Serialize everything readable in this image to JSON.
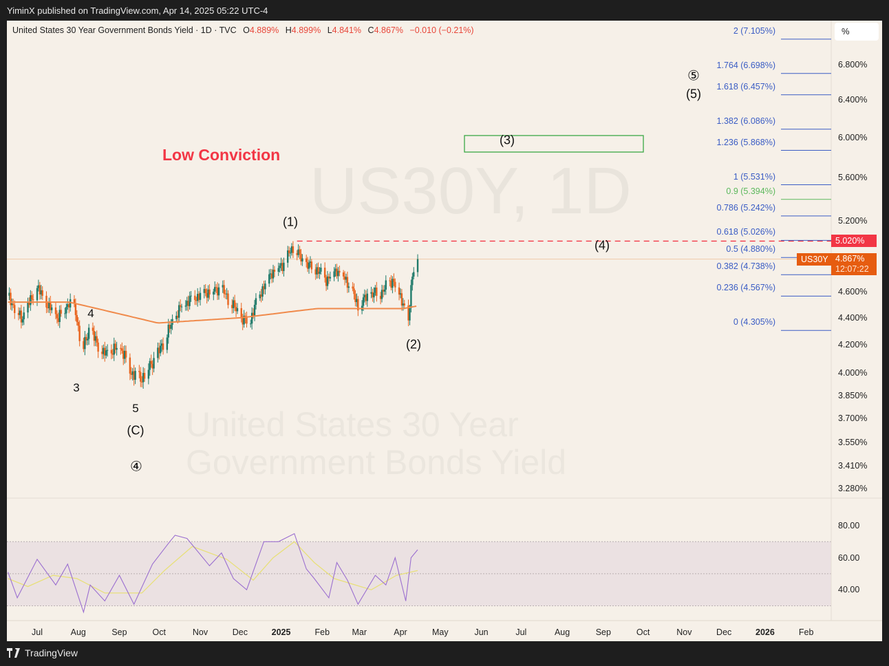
{
  "header": {
    "published": "YiminX published on TradingView.com, Apr 14, 2025 05:22 UTC-4"
  },
  "legend": {
    "symbol": "United States 30 Year Government Bonds Yield · 1D · TVC",
    "o_label": "O",
    "o": "4.889%",
    "h_label": "H",
    "h": "4.899%",
    "l_label": "L",
    "l": "4.841%",
    "c_label": "C",
    "c": "4.867%",
    "change": "−0.010 (−0.21%)"
  },
  "watermark": {
    "ticker": "US30Y, 1D",
    "name": "United States 30 Year Government Bonds Yield"
  },
  "annotations": {
    "low_conviction": "Low Conviction",
    "w1": "(1)",
    "w2": "(2)",
    "w3": "(3)",
    "w4": "(4)",
    "w5_circ": "⑤",
    "w5": "(5)",
    "m4": "4",
    "m3": "3",
    "m5": "5",
    "mc": "(C)",
    "c4": "④"
  },
  "price_axis": {
    "unit": "%",
    "ticks": [
      "6.800%",
      "6.400%",
      "6.000%",
      "5.600%",
      "5.200%",
      "4.600%",
      "4.400%",
      "4.200%",
      "4.000%",
      "3.850%",
      "3.700%",
      "3.550%",
      "3.410%",
      "3.280%"
    ],
    "tick_values": [
      6.8,
      6.4,
      6.0,
      5.6,
      5.2,
      4.6,
      4.4,
      4.2,
      4.0,
      3.85,
      3.7,
      3.55,
      3.41,
      3.28
    ],
    "scale": "log",
    "alert_label": "5.020%",
    "alert_value": 5.02,
    "symbol_badge": "US30Y",
    "last_price": "4.867%",
    "last_value": 4.867,
    "countdown": "12:07:22"
  },
  "fib_levels": [
    {
      "label": "2 (7.105%)",
      "value": 7.105,
      "color": "#3a5cc4"
    },
    {
      "label": "1.764 (6.698%)",
      "value": 6.698,
      "color": "#3a5cc4"
    },
    {
      "label": "1.618 (6.457%)",
      "value": 6.457,
      "color": "#3a5cc4"
    },
    {
      "label": "1.382 (6.086%)",
      "value": 6.086,
      "color": "#3a5cc4"
    },
    {
      "label": "1.236 (5.868%)",
      "value": 5.868,
      "color": "#3a5cc4"
    },
    {
      "label": "1 (5.531%)",
      "value": 5.531,
      "color": "#3a5cc4"
    },
    {
      "label": "0.9 (5.394%)",
      "value": 5.394,
      "color": "#5cb85c"
    },
    {
      "label": "0.786 (5.242%)",
      "value": 5.242,
      "color": "#3a5cc4"
    },
    {
      "label": "0.618 (5.026%)",
      "value": 5.026,
      "color": "#3a5cc4"
    },
    {
      "label": "0.5 (4.880%)",
      "value": 4.88,
      "color": "#3a5cc4"
    },
    {
      "label": "0.382 (4.738%)",
      "value": 4.738,
      "color": "#3a5cc4"
    },
    {
      "label": "0.236 (4.567%)",
      "value": 4.567,
      "color": "#3a5cc4"
    },
    {
      "label": "0 (4.305%)",
      "value": 4.305,
      "color": "#3a5cc4"
    }
  ],
  "x_axis": [
    {
      "label": "Jul",
      "date": "2024-07-01"
    },
    {
      "label": "Aug",
      "date": "2024-08-01"
    },
    {
      "label": "Sep",
      "date": "2024-09-01"
    },
    {
      "label": "Oct",
      "date": "2024-10-01"
    },
    {
      "label": "Nov",
      "date": "2024-11-01"
    },
    {
      "label": "Dec",
      "date": "2024-12-01"
    },
    {
      "label": "2025",
      "date": "2025-01-01",
      "bold": true
    },
    {
      "label": "Feb",
      "date": "2025-02-01"
    },
    {
      "label": "Mar",
      "date": "2025-03-01"
    },
    {
      "label": "Apr",
      "date": "2025-04-01"
    },
    {
      "label": "May",
      "date": "2025-05-01"
    },
    {
      "label": "Jun",
      "date": "2025-06-01"
    },
    {
      "label": "Jul",
      "date": "2025-07-01"
    },
    {
      "label": "Aug",
      "date": "2025-08-01"
    },
    {
      "label": "Sep",
      "date": "2025-09-01"
    },
    {
      "label": "Oct",
      "date": "2025-10-01"
    },
    {
      "label": "Nov",
      "date": "2025-11-01"
    },
    {
      "label": "Dec",
      "date": "2025-12-01"
    },
    {
      "label": "2026",
      "date": "2026-01-01",
      "bold": true
    },
    {
      "label": "Feb",
      "date": "2026-02-01"
    }
  ],
  "chart_data": {
    "type": "candlestick",
    "colors": {
      "up": "#1f7a6a",
      "down": "#e8641e",
      "ma": "#f08a4b",
      "rsi": "#9b6fd0",
      "rsi_ma": "#e8e07a",
      "alert": "#f23645",
      "last": "#e65c10"
    },
    "close_path": [
      [
        "2024-06-09",
        4.57
      ],
      [
        "2024-06-19",
        4.39
      ],
      [
        "2024-07-01",
        4.63
      ],
      [
        "2024-07-09",
        4.49
      ],
      [
        "2024-07-17",
        4.4
      ],
      [
        "2024-07-25",
        4.52
      ],
      [
        "2024-07-30",
        4.45
      ],
      [
        "2024-08-04",
        4.15
      ],
      [
        "2024-08-09",
        4.31
      ],
      [
        "2024-08-20",
        4.13
      ],
      [
        "2024-09-02",
        4.18
      ],
      [
        "2024-09-10",
        4.01
      ],
      [
        "2024-09-17",
        3.96
      ],
      [
        "2024-09-30",
        4.13
      ],
      [
        "2024-10-11",
        4.36
      ],
      [
        "2024-10-18",
        4.49
      ],
      [
        "2024-10-26",
        4.55
      ],
      [
        "2024-11-06",
        4.6
      ],
      [
        "2024-11-16",
        4.63
      ],
      [
        "2024-11-24",
        4.52
      ],
      [
        "2024-12-02",
        4.39
      ],
      [
        "2024-12-08",
        4.36
      ],
      [
        "2024-12-15",
        4.57
      ],
      [
        "2024-12-25",
        4.76
      ],
      [
        "2025-01-02",
        4.82
      ],
      [
        "2025-01-11",
        4.98
      ],
      [
        "2025-01-17",
        4.84
      ],
      [
        "2025-01-28",
        4.78
      ],
      [
        "2025-02-04",
        4.7
      ],
      [
        "2025-02-12",
        4.78
      ],
      [
        "2025-02-20",
        4.68
      ],
      [
        "2025-02-28",
        4.49
      ],
      [
        "2025-03-08",
        4.57
      ],
      [
        "2025-03-18",
        4.6
      ],
      [
        "2025-03-26",
        4.7
      ],
      [
        "2025-04-03",
        4.52
      ],
      [
        "2025-04-07",
        4.36
      ],
      [
        "2025-04-10",
        4.76
      ],
      [
        "2025-04-14",
        4.867
      ]
    ],
    "moving_average": [
      [
        "2024-06-09",
        4.52
      ],
      [
        "2024-07-25",
        4.52
      ],
      [
        "2024-09-30",
        4.36
      ],
      [
        "2024-12-02",
        4.4
      ],
      [
        "2025-01-28",
        4.47
      ],
      [
        "2025-04-03",
        4.47
      ],
      [
        "2025-04-14",
        4.49
      ]
    ],
    "rsi": {
      "ticks": [
        "80.00",
        "60.00",
        "40.00"
      ],
      "tick_values": [
        80,
        60,
        40
      ],
      "bands": [
        70,
        50,
        30
      ],
      "values": [
        [
          "2024-06-09",
          51
        ],
        [
          "2024-06-16",
          35
        ],
        [
          "2024-07-01",
          59
        ],
        [
          "2024-07-15",
          43
        ],
        [
          "2024-07-24",
          56
        ],
        [
          "2024-08-05",
          26
        ],
        [
          "2024-08-10",
          43
        ],
        [
          "2024-08-21",
          33
        ],
        [
          "2024-09-01",
          49
        ],
        [
          "2024-09-12",
          31
        ],
        [
          "2024-09-26",
          56
        ],
        [
          "2024-10-09",
          70
        ],
        [
          "2024-10-13",
          74
        ],
        [
          "2024-10-22",
          72
        ],
        [
          "2024-11-08",
          55
        ],
        [
          "2024-11-17",
          63
        ],
        [
          "2024-11-26",
          47
        ],
        [
          "2024-12-06",
          40
        ],
        [
          "2024-12-19",
          70
        ],
        [
          "2024-12-30",
          70
        ],
        [
          "2025-01-11",
          75
        ],
        [
          "2025-01-20",
          53
        ],
        [
          "2025-01-26",
          47
        ],
        [
          "2025-02-06",
          35
        ],
        [
          "2025-02-12",
          57
        ],
        [
          "2025-02-20",
          46
        ],
        [
          "2025-02-28",
          31
        ],
        [
          "2025-03-13",
          49
        ],
        [
          "2025-03-21",
          43
        ],
        [
          "2025-03-28",
          60
        ],
        [
          "2025-04-05",
          33
        ],
        [
          "2025-04-09",
          60
        ],
        [
          "2025-04-14",
          65
        ]
      ],
      "ma": [
        [
          "2024-06-09",
          47
        ],
        [
          "2024-06-24",
          42
        ],
        [
          "2024-07-13",
          49
        ],
        [
          "2024-07-31",
          47
        ],
        [
          "2024-08-21",
          38
        ],
        [
          "2024-09-18",
          38
        ],
        [
          "2024-10-05",
          52
        ],
        [
          "2024-10-26",
          67
        ],
        [
          "2024-11-21",
          59
        ],
        [
          "2024-12-11",
          46
        ],
        [
          "2024-12-26",
          60
        ],
        [
          "2025-01-11",
          70
        ],
        [
          "2025-01-26",
          57
        ],
        [
          "2025-02-10",
          47
        ],
        [
          "2025-03-10",
          40
        ],
        [
          "2025-03-29",
          49
        ],
        [
          "2025-04-14",
          52
        ]
      ]
    }
  }
}
